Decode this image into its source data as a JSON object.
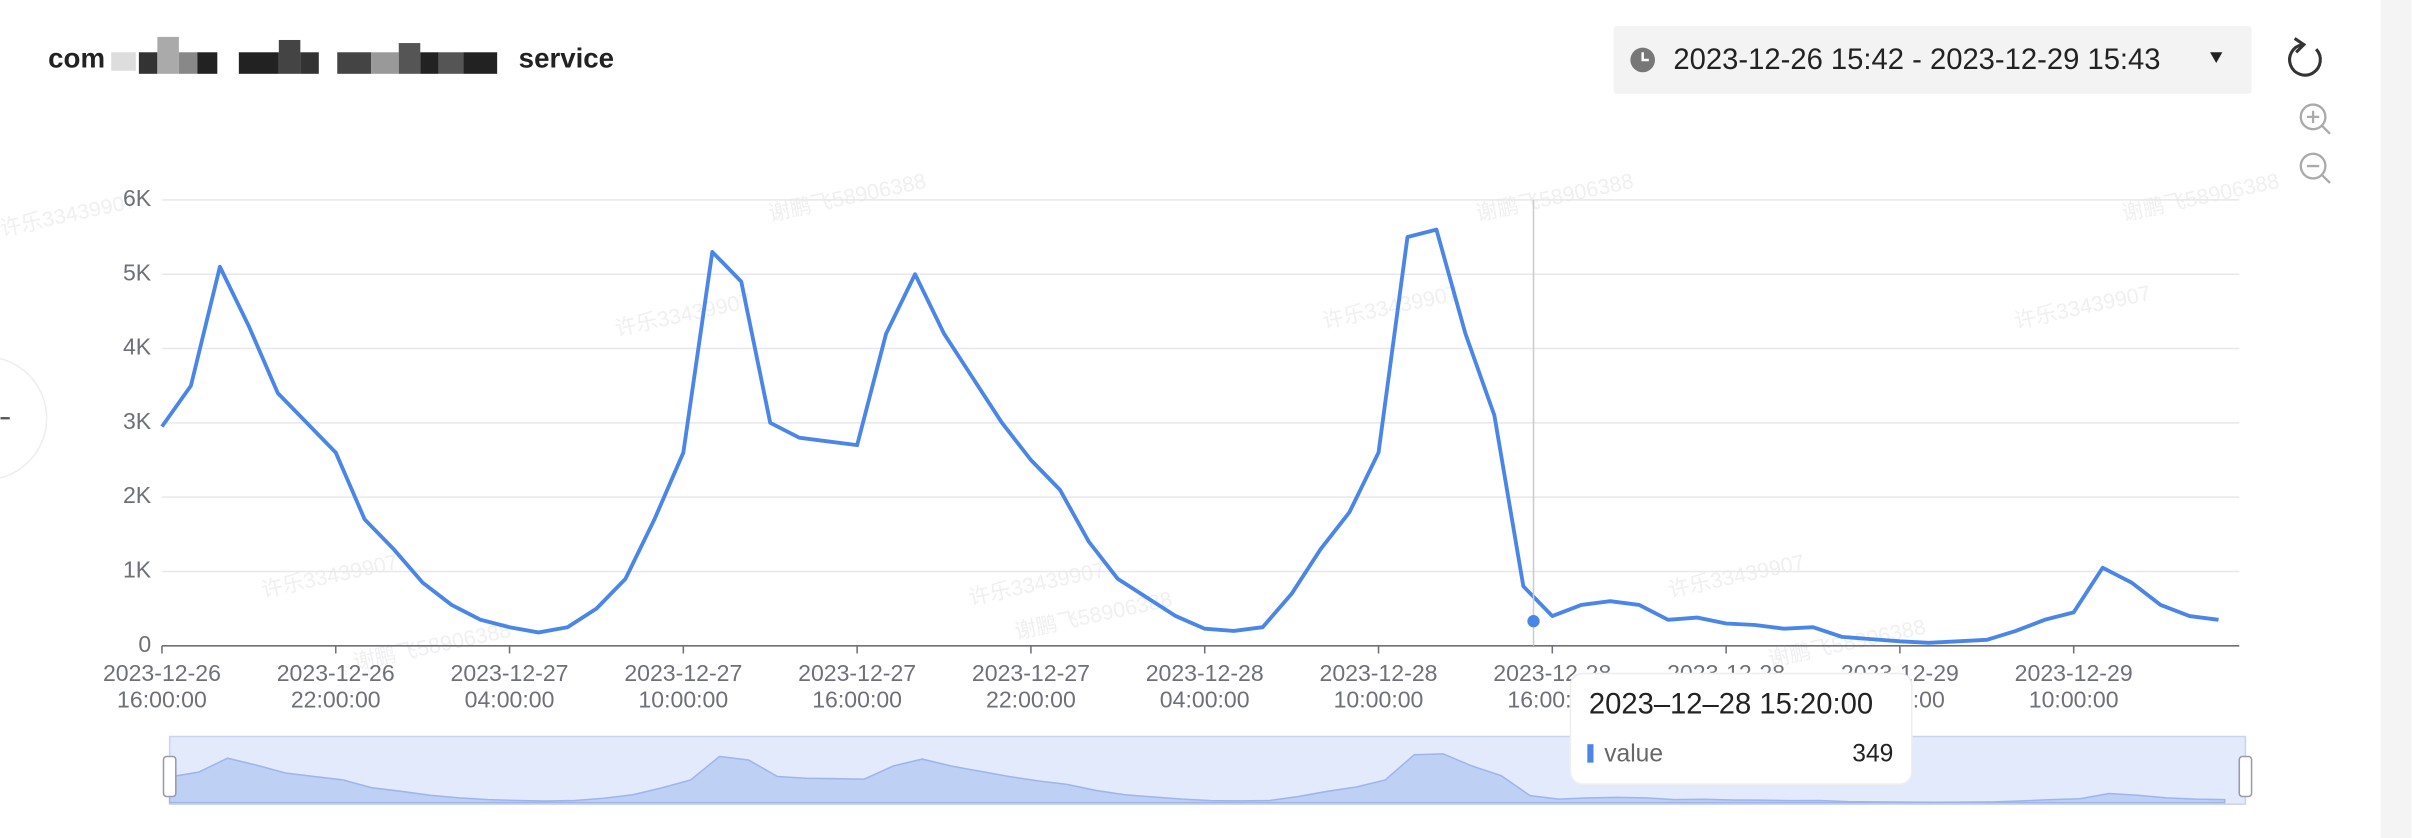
{
  "header": {
    "title_prefix": "com",
    "title_suffix": "service",
    "time_range": "2023-12-26 15:42 - 2023-12-29 15:43"
  },
  "watermarks": [
    "许乐33439907",
    "谢鹏飞58906388"
  ],
  "chart_data": {
    "type": "line",
    "x": [
      "2023-12-26 16:00",
      "2023-12-26 17:00",
      "2023-12-26 18:00",
      "2023-12-26 19:00",
      "2023-12-26 20:00",
      "2023-12-26 21:00",
      "2023-12-26 22:00",
      "2023-12-26 23:00",
      "2023-12-27 00:00",
      "2023-12-27 01:00",
      "2023-12-27 02:00",
      "2023-12-27 03:00",
      "2023-12-27 04:00",
      "2023-12-27 05:00",
      "2023-12-27 06:00",
      "2023-12-27 07:00",
      "2023-12-27 08:00",
      "2023-12-27 09:00",
      "2023-12-27 10:00",
      "2023-12-27 11:00",
      "2023-12-27 12:00",
      "2023-12-27 13:00",
      "2023-12-27 14:00",
      "2023-12-27 15:00",
      "2023-12-27 16:00",
      "2023-12-27 17:00",
      "2023-12-27 18:00",
      "2023-12-27 19:00",
      "2023-12-27 20:00",
      "2023-12-27 21:00",
      "2023-12-27 22:00",
      "2023-12-27 23:00",
      "2023-12-28 00:00",
      "2023-12-28 01:00",
      "2023-12-28 02:00",
      "2023-12-28 03:00",
      "2023-12-28 04:00",
      "2023-12-28 05:00",
      "2023-12-28 06:00",
      "2023-12-28 07:00",
      "2023-12-28 08:00",
      "2023-12-28 09:00",
      "2023-12-28 10:00",
      "2023-12-28 11:00",
      "2023-12-28 12:00",
      "2023-12-28 13:00",
      "2023-12-28 14:00",
      "2023-12-28 15:00",
      "2023-12-28 16:00",
      "2023-12-28 17:00",
      "2023-12-28 18:00",
      "2023-12-28 19:00",
      "2023-12-28 20:00",
      "2023-12-28 21:00",
      "2023-12-28 22:00",
      "2023-12-28 23:00",
      "2023-12-29 00:00",
      "2023-12-29 01:00",
      "2023-12-29 02:00",
      "2023-12-29 03:00",
      "2023-12-29 04:00",
      "2023-12-29 05:00",
      "2023-12-29 06:00",
      "2023-12-29 07:00",
      "2023-12-29 08:00",
      "2023-12-29 09:00",
      "2023-12-29 10:00",
      "2023-12-29 11:00",
      "2023-12-29 12:00",
      "2023-12-29 13:00",
      "2023-12-29 14:00",
      "2023-12-29 15:00"
    ],
    "series": [
      {
        "name": "value",
        "color": "#4a86e8",
        "values": [
          2950,
          3500,
          5100,
          4300,
          3400,
          3000,
          2600,
          1700,
          1300,
          850,
          550,
          350,
          250,
          180,
          250,
          500,
          900,
          1700,
          2600,
          5300,
          4900,
          3000,
          2800,
          2750,
          2700,
          4200,
          5000,
          4200,
          3600,
          3000,
          2500,
          2100,
          1400,
          900,
          650,
          400,
          230,
          200,
          250,
          700,
          1300,
          1800,
          2600,
          5500,
          5600,
          4200,
          3100,
          800,
          400,
          550,
          600,
          550,
          350,
          380,
          300,
          280,
          230,
          250,
          120,
          90,
          60,
          40,
          60,
          80,
          200,
          350,
          450,
          1050,
          850,
          550,
          400,
          350
        ]
      }
    ],
    "xlim": [
      "2023-12-26 16:00",
      "2023-12-29 15:43"
    ],
    "xticks": [
      {
        "value": "2023-12-26 16:00",
        "label": "2023-12-26 16:00:00"
      },
      {
        "value": "2023-12-26 22:00",
        "label": "2023-12-26 22:00:00"
      },
      {
        "value": "2023-12-27 04:00",
        "label": "2023-12-27 04:00:00"
      },
      {
        "value": "2023-12-27 10:00",
        "label": "2023-12-27 10:00:00"
      },
      {
        "value": "2023-12-27 16:00",
        "label": "2023-12-27 16:00:00"
      },
      {
        "value": "2023-12-27 22:00",
        "label": "2023-12-27 22:00:00"
      },
      {
        "value": "2023-12-28 04:00",
        "label": "2023-12-28 04:00:00"
      },
      {
        "value": "2023-12-28 10:00",
        "label": "2023-12-28 10:00:00"
      },
      {
        "value": "2023-12-28 16:00",
        "label": "2023-12-28 16:00:00"
      },
      {
        "value": "2023-12-28 22:00",
        "label": "2023-12-28 22:00:00"
      },
      {
        "value": "2023-12-29 04:00",
        "label": "2023-12-29 04:00:00"
      },
      {
        "value": "2023-12-29 10:00",
        "label": "2023-12-29 10:00:00"
      }
    ],
    "ylim": [
      0,
      6000
    ],
    "yticks": [
      0,
      {
        "value": 1000,
        "label": "1K"
      },
      {
        "value": 2000,
        "label": "2K"
      },
      {
        "value": 3000,
        "label": "3K"
      },
      {
        "value": 4000,
        "label": "4K"
      },
      {
        "value": 5000,
        "label": "5K"
      },
      {
        "value": 6000,
        "label": "6K"
      }
    ],
    "grid": true,
    "tooltip": {
      "title": "2023–12–28 15:20:00",
      "series_name": "value",
      "value": 349
    }
  }
}
